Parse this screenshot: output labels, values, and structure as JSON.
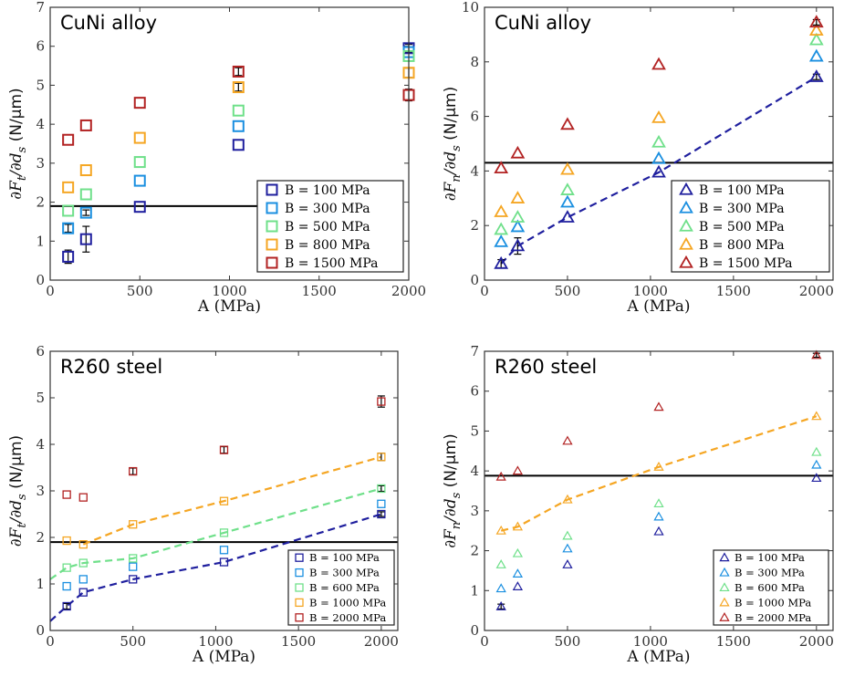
{
  "chart_data": [
    {
      "type": "scatter",
      "title": "CuNi alloy",
      "xlabel": "A (MPa)",
      "ylabel": "∂F_t/∂d_s (N/μm)",
      "ylabel_parts": {
        "main": "∂F",
        "sub1": "t",
        "mid": "/∂d",
        "sub2": "s",
        "unit": " (N/µm)"
      },
      "xlim": [
        0,
        2000
      ],
      "ylim": [
        0,
        7
      ],
      "xticks": [
        0,
        500,
        1000,
        1500,
        2000
      ],
      "yticks": [
        0,
        1,
        2,
        3,
        4,
        5,
        6,
        7
      ],
      "marker": "square",
      "legend_position": "bottom-right",
      "hline": {
        "y": 1.9,
        "x_range": [
          0,
          1200
        ],
        "color": "#000000"
      },
      "x": [
        100,
        200,
        500,
        1050,
        2000
      ],
      "series": [
        {
          "name": "B = 100 MPa",
          "color": "#1f1f9e",
          "values": [
            0.6,
            1.05,
            1.88,
            3.47,
            5.95
          ],
          "errors": [
            0.17,
            0.33,
            0,
            0,
            0.1
          ]
        },
        {
          "name": "B = 300 MPa",
          "color": "#1a8fe0",
          "values": [
            1.33,
            1.73,
            2.55,
            3.95,
            5.85
          ],
          "errors": [
            0.1,
            0.07,
            0,
            0,
            0
          ]
        },
        {
          "name": "B = 500 MPa",
          "color": "#6fe08a",
          "values": [
            1.78,
            2.2,
            3.03,
            4.35,
            5.75
          ],
          "errors": [
            0,
            0,
            0,
            0,
            0
          ]
        },
        {
          "name": "B = 800 MPa",
          "color": "#f5a623",
          "values": [
            2.38,
            2.82,
            3.65,
            4.95,
            5.32
          ],
          "errors": [
            0,
            0,
            0,
            0.1,
            0.12
          ]
        },
        {
          "name": "B = 1500 MPa",
          "color": "#b22222",
          "values": [
            3.6,
            3.97,
            4.55,
            5.35,
            4.75
          ],
          "errors": [
            0,
            0,
            0,
            0.1,
            0.15
          ]
        }
      ],
      "dashed": []
    },
    {
      "type": "scatter",
      "title": "CuNi alloy",
      "xlabel": "A (MPa)",
      "ylabel": "∂F_n/∂d_s (N/μm)",
      "ylabel_parts": {
        "main": "∂F",
        "sub1": "n",
        "mid": "/∂d",
        "sub2": "s",
        "unit": " (N/µm)"
      },
      "xlim": [
        0,
        2100
      ],
      "ylim": [
        0,
        10
      ],
      "xticks": [
        0,
        500,
        1000,
        1500,
        2000
      ],
      "yticks": [
        0,
        2,
        4,
        6,
        8,
        10
      ],
      "marker": "triangle",
      "legend_position": "bottom-right",
      "hline": {
        "y": 4.3,
        "x_range": [
          0,
          2100
        ],
        "color": "#000000"
      },
      "x": [
        100,
        200,
        500,
        1050,
        2000
      ],
      "series": [
        {
          "name": "B = 100 MPa",
          "color": "#1f1f9e",
          "values": [
            0.6,
            1.25,
            2.3,
            3.95,
            7.45
          ],
          "errors": [
            0.15,
            0.3,
            0,
            0,
            0.1
          ]
        },
        {
          "name": "B = 300 MPa",
          "color": "#1a8fe0",
          "values": [
            1.4,
            1.95,
            2.85,
            4.45,
            8.2
          ],
          "errors": [
            0,
            0,
            0,
            0,
            0
          ]
        },
        {
          "name": "B = 500 MPa",
          "color": "#6fe08a",
          "values": [
            1.85,
            2.3,
            3.3,
            5.05,
            8.8
          ],
          "errors": [
            0,
            0,
            0,
            0,
            0
          ]
        },
        {
          "name": "B = 800 MPa",
          "color": "#f5a623",
          "values": [
            2.5,
            3.0,
            4.05,
            5.95,
            9.15
          ],
          "errors": [
            0,
            0,
            0,
            0,
            0
          ]
        },
        {
          "name": "B = 1500 MPa",
          "color": "#b22222",
          "values": [
            4.1,
            4.65,
            5.7,
            7.9,
            9.45
          ],
          "errors": [
            0,
            0,
            0,
            0,
            0.1
          ]
        }
      ],
      "dashed": [
        {
          "color": "#1f1f9e",
          "x": [
            100,
            200,
            500,
            1050,
            2000
          ],
          "y": [
            0.6,
            1.25,
            2.3,
            3.95,
            7.45
          ]
        }
      ]
    },
    {
      "type": "scatter",
      "title": "R260 steel",
      "xlabel": "A (MPa)",
      "ylabel": "∂F_t/∂d_s (N/μm)",
      "ylabel_parts": {
        "main": "∂F",
        "sub1": "t",
        "mid": "/∂d",
        "sub2": "s",
        "unit": " (N/µm)"
      },
      "xlim": [
        0,
        2100
      ],
      "ylim": [
        0,
        6
      ],
      "xticks": [
        0,
        500,
        1000,
        1500,
        2000
      ],
      "yticks": [
        0,
        1,
        2,
        3,
        4,
        5,
        6
      ],
      "marker": "square",
      "marker_small": true,
      "legend_position": "bottom-right",
      "hline": {
        "y": 1.9,
        "x_range": [
          0,
          2100
        ],
        "color": "#000000"
      },
      "x": [
        100,
        200,
        500,
        1050,
        2000
      ],
      "series": [
        {
          "name": "B = 100 MPa",
          "color": "#1f1f9e",
          "values": [
            0.52,
            0.82,
            1.1,
            1.47,
            2.5
          ],
          "errors": [
            0.06,
            0,
            0,
            0,
            0.05
          ]
        },
        {
          "name": "B = 300 MPa",
          "color": "#1a8fe0",
          "values": [
            0.95,
            1.1,
            1.37,
            1.73,
            2.72
          ],
          "errors": [
            0,
            0,
            0,
            0,
            0
          ]
        },
        {
          "name": "B = 600 MPa",
          "color": "#6fe08a",
          "values": [
            1.35,
            1.45,
            1.55,
            2.1,
            3.05
          ],
          "errors": [
            0,
            0,
            0,
            0,
            0.06
          ]
        },
        {
          "name": "B = 1000 MPa",
          "color": "#f5a623",
          "values": [
            1.93,
            1.85,
            2.28,
            2.78,
            3.73
          ],
          "errors": [
            0,
            0,
            0,
            0,
            0.08
          ]
        },
        {
          "name": "B = 2000 MPa",
          "color": "#b22222",
          "values": [
            2.92,
            2.86,
            3.42,
            3.88,
            4.92
          ],
          "errors": [
            0,
            0,
            0.07,
            0.07,
            0.12
          ]
        }
      ],
      "dashed": [
        {
          "color": "#1f1f9e",
          "x": [
            0,
            100,
            200,
            500,
            1050,
            2000
          ],
          "y": [
            0.2,
            0.52,
            0.82,
            1.1,
            1.47,
            2.5
          ]
        },
        {
          "color": "#6fe08a",
          "x": [
            0,
            100,
            200,
            500,
            1050,
            2000
          ],
          "y": [
            1.1,
            1.35,
            1.45,
            1.55,
            2.1,
            3.05
          ]
        },
        {
          "color": "#f5a623",
          "x": [
            200,
            500,
            1050,
            2000
          ],
          "y": [
            1.85,
            2.28,
            2.78,
            3.73
          ]
        }
      ]
    },
    {
      "type": "scatter",
      "title": "R260 steel",
      "xlabel": "A (MPa)",
      "ylabel": "∂F_n/∂d_s (N/μm)",
      "ylabel_parts": {
        "main": "∂F",
        "sub1": "n",
        "mid": "/∂d",
        "sub2": "s",
        "unit": " (N/µm)"
      },
      "xlim": [
        0,
        2100
      ],
      "ylim": [
        0,
        7
      ],
      "xticks": [
        0,
        500,
        1000,
        1500,
        2000
      ],
      "yticks": [
        0,
        1,
        2,
        3,
        4,
        5,
        6,
        7
      ],
      "marker": "triangle",
      "marker_small": true,
      "legend_position": "bottom-right",
      "hline": {
        "y": 3.88,
        "x_range": [
          0,
          2100
        ],
        "color": "#000000"
      },
      "x": [
        100,
        200,
        500,
        1050,
        2000
      ],
      "series": [
        {
          "name": "B = 100 MPa",
          "color": "#1f1f9e",
          "values": [
            0.6,
            1.1,
            1.65,
            2.48,
            3.82
          ],
          "errors": [
            0.06,
            0,
            0,
            0,
            0
          ]
        },
        {
          "name": "B = 300 MPa",
          "color": "#1a8fe0",
          "values": [
            1.05,
            1.42,
            2.05,
            2.85,
            4.15
          ],
          "errors": [
            0,
            0,
            0,
            0,
            0
          ]
        },
        {
          "name": "B = 600 MPa",
          "color": "#6fe08a",
          "values": [
            1.65,
            1.93,
            2.37,
            3.18,
            4.47
          ],
          "errors": [
            0,
            0,
            0,
            0,
            0
          ]
        },
        {
          "name": "B = 1000 MPa",
          "color": "#f5a623",
          "values": [
            2.5,
            2.6,
            3.28,
            4.1,
            5.37
          ],
          "errors": [
            0,
            0,
            0,
            0,
            0
          ]
        },
        {
          "name": "B = 2000 MPa",
          "color": "#b22222",
          "values": [
            3.85,
            4.0,
            4.75,
            5.6,
            6.9
          ],
          "errors": [
            0,
            0,
            0,
            0,
            0.05
          ]
        }
      ],
      "dashed": [
        {
          "color": "#f5a623",
          "x": [
            100,
            200,
            500,
            1050,
            2000
          ],
          "y": [
            2.5,
            2.6,
            3.28,
            4.1,
            5.37
          ]
        }
      ]
    }
  ]
}
